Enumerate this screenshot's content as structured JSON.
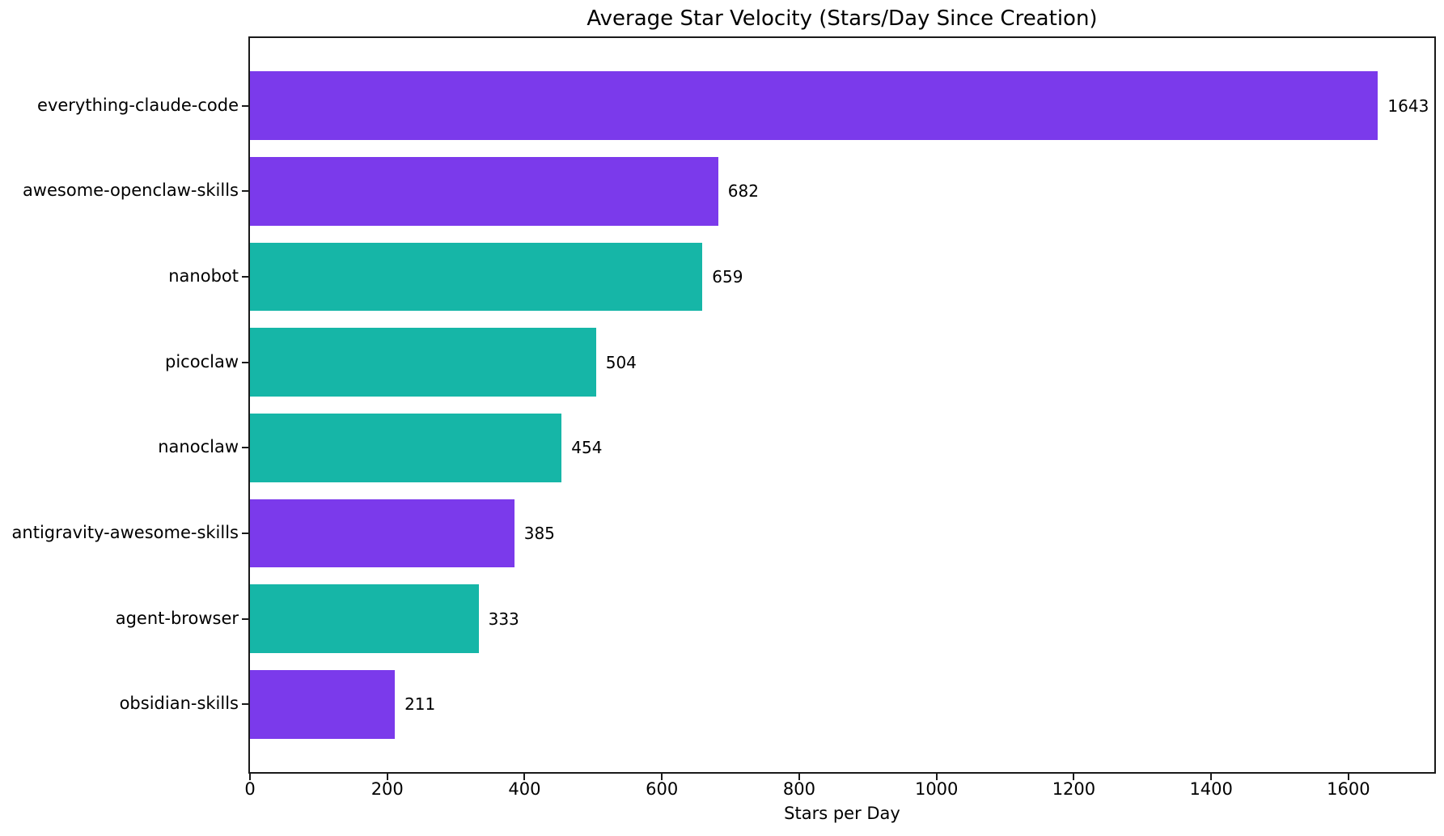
{
  "chart_data": {
    "type": "bar",
    "orientation": "horizontal",
    "title": "Average Star Velocity (Stars/Day Since Creation)",
    "xlabel": "Stars per Day",
    "ylabel": "",
    "categories": [
      "everything-claude-code",
      "awesome-openclaw-skills",
      "nanobot",
      "picoclaw",
      "nanoclaw",
      "antigravity-awesome-skills",
      "agent-browser",
      "obsidian-skills"
    ],
    "values": [
      1643,
      682,
      659,
      504,
      454,
      385,
      333,
      211
    ],
    "value_labels": [
      "1643",
      "682",
      "659",
      "504",
      "454",
      "385",
      "333",
      "211"
    ],
    "bar_colors": [
      "#7B3AEB",
      "#7B3AEB",
      "#16B6A7",
      "#16B6A7",
      "#16B6A7",
      "#7B3AEB",
      "#16B6A7",
      "#7B3AEB"
    ],
    "xlim": [
      0,
      1725
    ],
    "xticks": [
      0,
      200,
      400,
      600,
      800,
      1000,
      1200,
      1400,
      1600
    ],
    "grid": false,
    "legend": null,
    "colors": {
      "purple": "#7B3AEB",
      "teal": "#16B6A7",
      "spine": "#1a1a1a",
      "text": "#000000",
      "background": "#FFFFFF"
    }
  }
}
